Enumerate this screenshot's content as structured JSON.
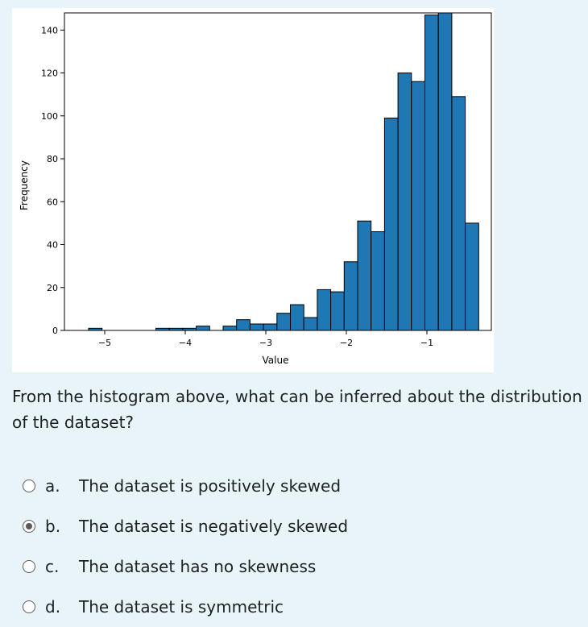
{
  "question": {
    "text": "From the histogram above, what can be inferred about the distribution of the dataset?"
  },
  "answers": [
    {
      "letter": "a.",
      "text": "The dataset is positively skewed",
      "checked": false
    },
    {
      "letter": "b.",
      "text": "The dataset is negatively skewed",
      "checked": true
    },
    {
      "letter": "c.",
      "text": "The dataset has no skewness",
      "checked": false
    },
    {
      "letter": "d.",
      "text": "The dataset is symmetric",
      "checked": false
    }
  ],
  "chart_data": {
    "type": "bar",
    "title": "",
    "xlabel": "Value",
    "ylabel": "Frequency",
    "xlim": [
      -5.5,
      -0.2
    ],
    "ylim": [
      0,
      148
    ],
    "x_ticks": [
      "-5",
      "-4",
      "-3",
      "-2",
      "-1"
    ],
    "y_ticks": [
      "0",
      "20",
      "40",
      "60",
      "80",
      "100",
      "120",
      "140"
    ],
    "x_tick_values": [
      -5,
      -4,
      -3,
      -2,
      -1
    ],
    "y_tick_values": [
      0,
      20,
      40,
      60,
      80,
      100,
      120,
      140
    ],
    "grid": false,
    "bin_edges": [
      -5.2,
      -5.033,
      -4.866,
      -4.699,
      -4.532,
      -4.365,
      -4.198,
      -4.031,
      -3.864,
      -3.697,
      -3.53,
      -3.363,
      -3.196,
      -3.029,
      -2.862,
      -2.695,
      -2.528,
      -2.361,
      -2.194,
      -2.027,
      -1.86,
      -1.693,
      -1.526,
      -1.359,
      -1.192,
      -1.025,
      -0.858,
      -0.691,
      -0.524,
      -0.357,
      -0.19
    ],
    "values": [
      1,
      0,
      0,
      0,
      0,
      1,
      1,
      1,
      2,
      0,
      2,
      5,
      3,
      3,
      8,
      12,
      6,
      19,
      18,
      32,
      51,
      46,
      99,
      120,
      116,
      147,
      148,
      109,
      50,
      0
    ],
    "color": "#1f77b4",
    "edgecolor": "#000000"
  }
}
